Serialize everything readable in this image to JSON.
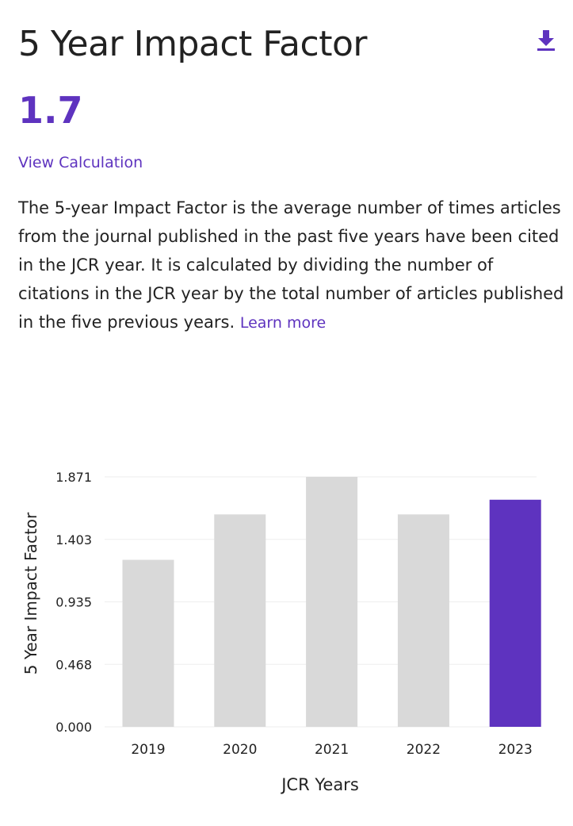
{
  "header": {
    "title": "5 Year Impact Factor",
    "value": "1.7",
    "view_calculation": "View Calculation",
    "download_icon": "download-icon"
  },
  "description": {
    "text": "The 5-year Impact Factor is the average number of times articles from the journal published in the past five years have been cited in the JCR year. It is calculated by dividing the number of citations in the JCR year by the total number of articles published in the five previous years.",
    "learn_more": "Learn more"
  },
  "colors": {
    "accent": "#5e33bf",
    "bar_default": "#d9d9d9",
    "bar_highlight": "#5e33bf",
    "gridline": "#eeeeee"
  },
  "chart_data": {
    "type": "bar",
    "categories": [
      "2019",
      "2020",
      "2021",
      "2022",
      "2023"
    ],
    "values": [
      1.25,
      1.59,
      1.871,
      1.59,
      1.7
    ],
    "highlight_index": 4,
    "xlabel": "JCR Years",
    "ylabel": "5 Year Impact Factor",
    "ylim": [
      0,
      1.871
    ],
    "yticks": [
      "0.000",
      "0.468",
      "0.935",
      "1.403",
      "1.871"
    ],
    "grid": true
  }
}
